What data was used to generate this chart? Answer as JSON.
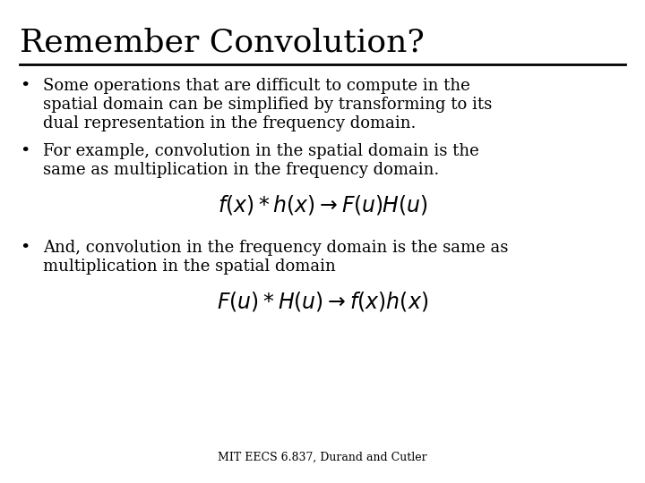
{
  "title": "Remember Convolution?",
  "background_color": "#ffffff",
  "title_color": "#000000",
  "title_fontsize": 26,
  "title_font": "DejaVu Serif",
  "body_fontsize": 13,
  "body_font": "DejaVu Serif",
  "bullet1_line1": "Some operations that are difficult to compute in the",
  "bullet1_line2": "spatial domain can be simplified by transforming to its",
  "bullet1_line3": "dual representation in the frequency domain.",
  "bullet2_line1": "For example, convolution in the spatial domain is the",
  "bullet2_line2": "same as multiplication in the frequency domain.",
  "formula1": "$f(x)*h(x) \\rightarrow F(u)H(u)$",
  "bullet3_line1": "And, convolution in the frequency domain is the same as",
  "bullet3_line2": "multiplication in the spatial domain",
  "formula2": "$F(u)*H(u) \\rightarrow f(x)h(x)$",
  "footer": "MIT EECS 6.837, Durand and Cutler",
  "footer_fontsize": 9,
  "formula_fontsize": 17,
  "line_color": "#000000",
  "line_width": 2.0
}
